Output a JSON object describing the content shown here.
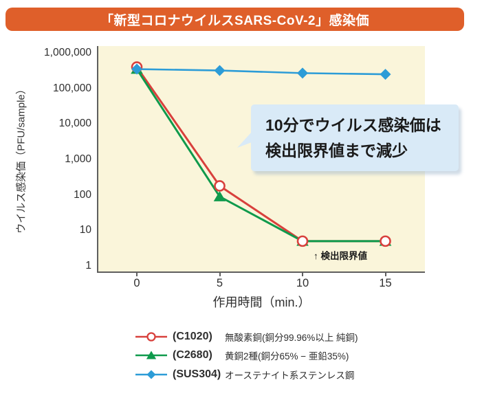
{
  "title": "「新型コロナウイルスSARS-CoV-2」感染価",
  "colors": {
    "banner_bg": "#df5f2a",
    "plot_bg": "#faf5da",
    "axis": "#5e5e5e",
    "callout_bg": "#d9eaf7",
    "red": "#d8403c",
    "green": "#0f9a4c",
    "blue": "#2c9cd7"
  },
  "chart_data": {
    "type": "line",
    "x": [
      0,
      5,
      10,
      15
    ],
    "x_tick_labels": [
      "0",
      "5",
      "10",
      "15"
    ],
    "xlabel": "作用時間（min.）",
    "ylabel": "ウイルス感染価（PFU/sample）",
    "yscale": "log",
    "ylim": [
      1,
      1000000
    ],
    "y_tick_labels": [
      "1,000,000",
      "100,000",
      "10,000",
      "1,000",
      "100",
      "10",
      "1"
    ],
    "grid": false,
    "legend_position": "bottom",
    "series": [
      {
        "name": "(C1020)",
        "description": "無酸素銅(銅分99.96%以上 純銅)",
        "color": "#d8403c",
        "marker": "circle-open",
        "values": [
          400000,
          180,
          5,
          5
        ]
      },
      {
        "name": "(C2680)",
        "description": "黄銅2種(銅分65% − 亜鉛35%)",
        "color": "#0f9a4c",
        "marker": "triangle",
        "values": [
          350000,
          90,
          5,
          5
        ]
      },
      {
        "name": "(SUS304)",
        "description": "オーステナイト系ステンレス鋼",
        "color": "#2c9cd7",
        "marker": "diamond",
        "values": [
          350000,
          320000,
          270000,
          250000
        ]
      }
    ],
    "annotations": {
      "callout": [
        "10分でウイルス感染価は",
        "検出限界値まで減少"
      ],
      "detection_limit": "↑ 検出限界値"
    }
  }
}
